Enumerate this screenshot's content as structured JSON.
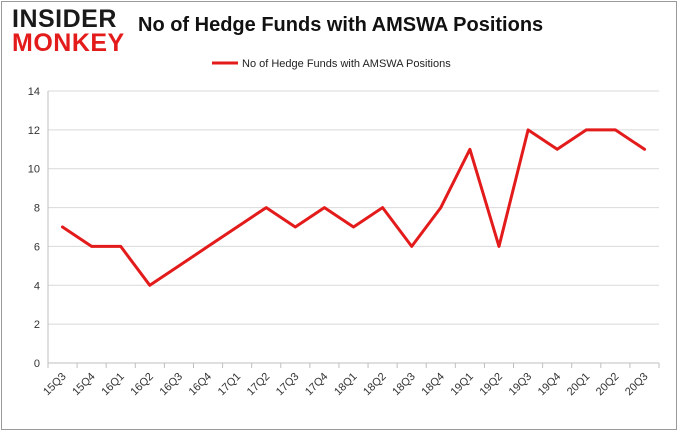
{
  "logo": {
    "line1": "INSIDER",
    "line2": "MONKEY"
  },
  "colors": {
    "series": "#e31b1b",
    "grid": "#d9d9d9",
    "axis": "#bfbfbf"
  },
  "chart_data": {
    "type": "line",
    "title": "No of Hedge Funds with AMSWA Positions",
    "xlabel": "",
    "ylabel": "",
    "ylim": [
      0,
      14
    ],
    "yticks": [
      0,
      2,
      4,
      6,
      8,
      10,
      12,
      14
    ],
    "grid": true,
    "legend_position": "top-center",
    "categories": [
      "15Q3",
      "15Q4",
      "16Q1",
      "16Q2",
      "16Q3",
      "16Q4",
      "17Q1",
      "17Q2",
      "17Q3",
      "17Q4",
      "18Q1",
      "18Q2",
      "18Q3",
      "18Q4",
      "19Q1",
      "19Q2",
      "19Q3",
      "19Q4",
      "20Q1",
      "20Q2",
      "20Q3"
    ],
    "series": [
      {
        "name": "No of Hedge Funds with AMSWA Positions",
        "values": [
          7,
          6,
          6,
          4,
          5,
          6,
          7,
          8,
          7,
          8,
          7,
          8,
          6,
          8,
          11,
          6,
          12,
          11,
          12,
          12,
          11
        ]
      }
    ]
  }
}
